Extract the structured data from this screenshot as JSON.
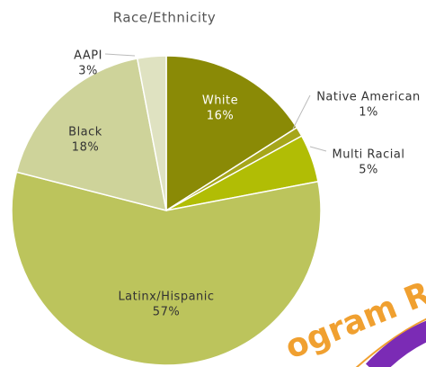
{
  "chart_data": {
    "type": "pie",
    "title": "Race/Ethnicity",
    "categories": [
      "White",
      "Native American",
      "Multi Racial",
      "Latinx/Hispanic",
      "Black",
      "AAPI"
    ],
    "values": [
      16,
      1,
      5,
      57,
      18,
      3
    ],
    "value_labels": [
      "16%",
      "1%",
      "5%",
      "57%",
      "18%",
      "3%"
    ],
    "colors": [
      "#8a8a06",
      "#a6a61a",
      "#b1bd05",
      "#bcc45c",
      "#ced39a",
      "#dfe2c1"
    ]
  },
  "overlay_text": "ogram R"
}
